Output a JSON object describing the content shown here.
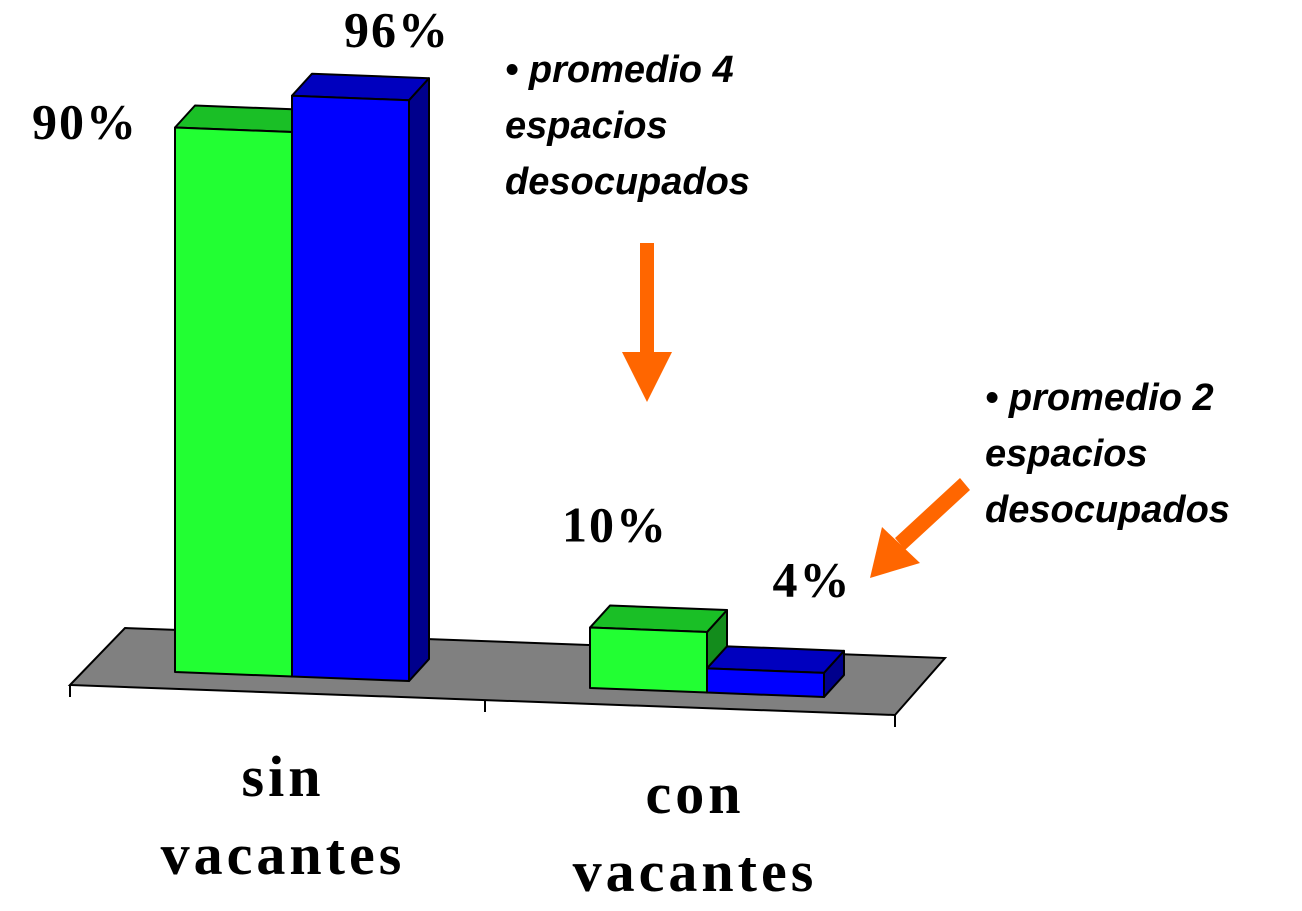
{
  "chart_data": {
    "type": "bar3d",
    "categories": [
      "sin vacantes",
      "con vacantes"
    ],
    "series": [
      {
        "color": "#22ff33",
        "values": [
          90,
          10
        ],
        "value_labels": [
          "90%",
          "10%"
        ]
      },
      {
        "color": "#0000ff",
        "values": [
          96,
          4
        ],
        "value_labels": [
          "96%",
          "4%"
        ]
      }
    ],
    "annotations": [
      "• promedio 4 espacios desocupados",
      "• promedio 2 espacios desocupados"
    ]
  }
}
